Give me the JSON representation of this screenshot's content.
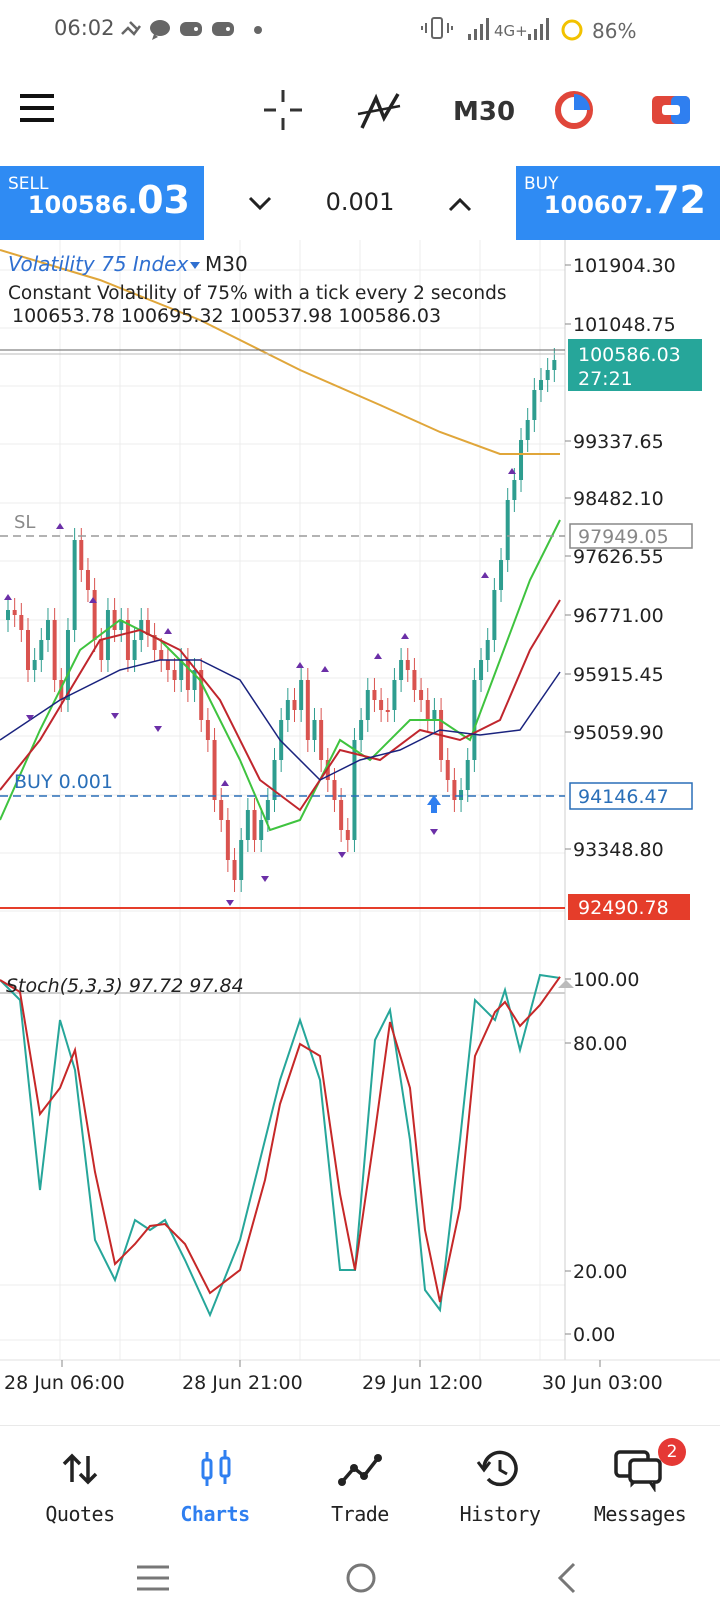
{
  "status_bar": {
    "time": "06:02",
    "network": "4G+",
    "battery": "86%"
  },
  "toolbar": {
    "menu_icon": "hamburger-icon",
    "crosshair_icon": "crosshair-icon",
    "indicators_icon": "indicators-icon",
    "timeframe": "M30",
    "objects_icon": "objects-icon",
    "trade_icon": "one-click-trade-icon"
  },
  "trade_panel": {
    "sell_label": "SELL",
    "sell_price_main": "100586.",
    "sell_price_big": "03",
    "lot": "0.001",
    "buy_label": "BUY",
    "buy_price_main": "100607.",
    "buy_price_big": "72"
  },
  "chart": {
    "symbol": "Volatility 75 Index",
    "timeframe": "M30",
    "description": "Constant Volatility of 75% with a tick every 2 seconds",
    "ohlc": "100653.78 100695.32 100537.98 100586.03",
    "price_ticks": [
      "101904.30",
      "101048.75",
      "99337.65",
      "98482.10",
      "97626.55",
      "96771.00",
      "95915.45",
      "95059.90",
      "93348.80"
    ],
    "current_price": "100586.03",
    "countdown": "27:21",
    "sl_label": "SL",
    "sl_price": "97949.05",
    "buy_label": "BUY 0.001",
    "buy_price": "94146.47",
    "low_price": "92490.78",
    "stoch_label": "Stoch(5,3,3) 97.72 97.84",
    "stoch_ticks": [
      "100.00",
      "80.00",
      "20.00",
      "0.00"
    ],
    "time_labels": [
      "28 Jun 06:00",
      "28 Jun 21:00",
      "29 Jun 12:00",
      "30 Jun 03:00"
    ],
    "colors": {
      "bull": "#2e9d8f",
      "bear": "#d9534f",
      "sl_line": "#9a9a9a",
      "buy_line": "#2a6fb8",
      "low_line": "#e53d2a",
      "current_price_box": "#26a69a",
      "ma_fast": "#3fc33f",
      "ma_mid": "#c0262d",
      "ma_slow": "#1a237e",
      "ma_long": "#e0a63a",
      "stoch_main": "#26a69a",
      "stoch_signal": "#c62828"
    }
  },
  "bottom_nav": {
    "items": [
      {
        "label": "Quotes",
        "icon": "quotes-icon"
      },
      {
        "label": "Charts",
        "icon": "charts-icon"
      },
      {
        "label": "Trade",
        "icon": "trade-icon"
      },
      {
        "label": "History",
        "icon": "history-icon"
      },
      {
        "label": "Messages",
        "icon": "messages-icon"
      }
    ],
    "messages_badge": "2"
  }
}
